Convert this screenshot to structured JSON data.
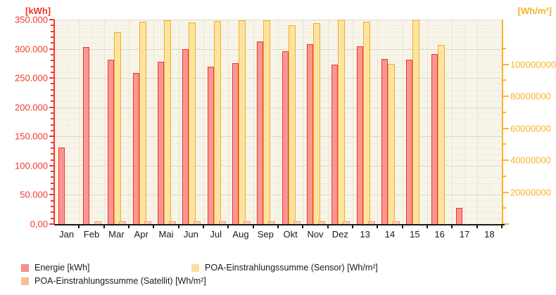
{
  "chart_data": {
    "type": "bar",
    "title": "",
    "categories": [
      "Jan",
      "Feb",
      "Mar",
      "Apr",
      "Mai",
      "Jun",
      "Jul",
      "Aug",
      "Sep",
      "Okt",
      "Nov",
      "Dez",
      "13",
      "14",
      "15",
      "16",
      "17",
      "18"
    ],
    "series": [
      {
        "key": "energie",
        "name": "Energie [kWh]",
        "axis": "left",
        "fill": "#FA9694",
        "border": "#F23528",
        "values": [
          131000,
          303000,
          281000,
          259000,
          278000,
          300000,
          270000,
          275000,
          313000,
          296000,
          308000,
          273000,
          304000,
          283000,
          282000,
          291000,
          28000,
          null
        ]
      },
      {
        "key": "poa-sensor",
        "name": "POA-Einstrahlungssumme (Sensor) [Wh/m²]",
        "axis": "right",
        "fill": "#FCE3A2",
        "border": "#F3AE21",
        "values": [
          null,
          null,
          120000000,
          126500000,
          127400000,
          126300000,
          127200000,
          127500000,
          127500000,
          124600000,
          125600000,
          127800000,
          126800000,
          100400000,
          127900000,
          112100000,
          null,
          null
        ]
      },
      {
        "key": "poa-satellit",
        "name": "POA-Einstrahlungssumme (Satellit) [Wh/m²]",
        "axis": "right",
        "fill": "#FBD0AC",
        "border": "#F59C72",
        "values": [
          null,
          1800000,
          1800000,
          1800000,
          1800000,
          1800000,
          1800000,
          1800000,
          1800000,
          1800000,
          1800000,
          1800000,
          1800000,
          1800000,
          null,
          null,
          null,
          null
        ]
      }
    ],
    "left_axis": {
      "label": "[kWh]",
      "color": "#F2392C",
      "min": 0,
      "max": 350000,
      "major_step": 50000,
      "minor_step": 10000,
      "ticks": [
        {
          "value": 0,
          "text": "0,00"
        },
        {
          "value": 50000,
          "text": "50.000"
        },
        {
          "value": 100000,
          "text": "100.000"
        },
        {
          "value": 150000,
          "text": "150.000"
        },
        {
          "value": 200000,
          "text": "200.000"
        },
        {
          "value": 250000,
          "text": "250.000"
        },
        {
          "value": 300000,
          "text": "300.000"
        },
        {
          "value": 350000,
          "text": "350.000"
        }
      ]
    },
    "right_axis": {
      "label": "[Wh/m²]",
      "color": "#F7B32B",
      "min": 0,
      "max": 128000000,
      "major_step": 20000000,
      "minor_step": 10000000,
      "ticks": [
        {
          "value": 20000000,
          "text": "20000000"
        },
        {
          "value": 40000000,
          "text": "40000000"
        },
        {
          "value": 60000000,
          "text": "60000000"
        },
        {
          "value": 80000000,
          "text": "80000000"
        },
        {
          "value": 100000000,
          "text": "100000000"
        }
      ]
    },
    "grid": true,
    "legend_position": "bottom",
    "legend": [
      {
        "label": "Energie [kWh]",
        "color": "#F5918F"
      },
      {
        "label": "POA-Einstrahlungssumme (Satellit) [Wh/m²]",
        "color": "#F7BD9B"
      },
      {
        "label": "POA-Einstrahlungssumme (Sensor) [Wh/m²]",
        "color": "#FBE0A0"
      }
    ]
  }
}
